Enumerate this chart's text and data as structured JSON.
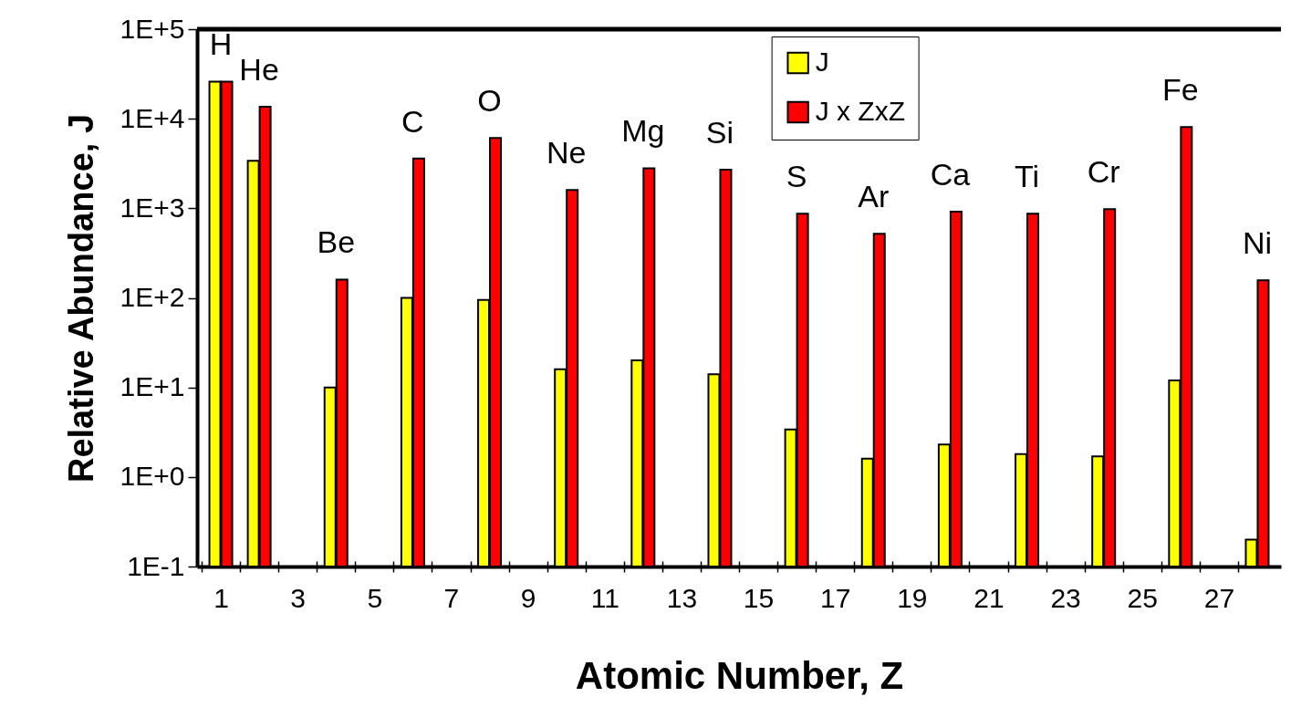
{
  "chart_data": {
    "type": "bar",
    "xlabel": "Atomic Number, Z",
    "ylabel": "Relative Abundance, J",
    "x": [
      1,
      2,
      4,
      6,
      8,
      10,
      12,
      14,
      16,
      18,
      20,
      22,
      24,
      26,
      28
    ],
    "series": [
      {
        "name": "J",
        "color": "#ffff00",
        "values": [
          26000,
          3400,
          10,
          100,
          95,
          16,
          20,
          14,
          3.4,
          1.6,
          2.3,
          1.8,
          1.7,
          12,
          0.2
        ]
      },
      {
        "name": "J x ZxZ",
        "color": "#ff0000",
        "values": [
          26000,
          13600,
          160,
          3600,
          6100,
          1600,
          2800,
          2700,
          870,
          520,
          920,
          870,
          980,
          8100,
          157
        ]
      }
    ],
    "log": "y",
    "ylim": [
      0.1,
      100000
    ],
    "yticks": [
      {
        "value": 0.1,
        "label": "1E-1"
      },
      {
        "value": 1,
        "label": "1E+0"
      },
      {
        "value": 10,
        "label": "1E+1"
      },
      {
        "value": 100,
        "label": "1E+2"
      },
      {
        "value": 1000,
        "label": "1E+3"
      },
      {
        "value": 10000,
        "label": "1E+4"
      },
      {
        "value": 100000,
        "label": "1E+5"
      }
    ],
    "xlim": [
      0.5,
      28.5
    ],
    "xticks": [
      1,
      3,
      5,
      7,
      9,
      11,
      13,
      15,
      17,
      19,
      21,
      23,
      25,
      27,
      {
        "value": 0.5,
        "label": null
      },
      {
        "value": 1.5,
        "label": null
      },
      {
        "value": 2.5,
        "label": null
      },
      {
        "value": 3.5,
        "label": null
      },
      {
        "value": 4.5,
        "label": null
      },
      {
        "value": 5.5,
        "label": null
      },
      {
        "value": 6.5,
        "label": null
      },
      {
        "value": 7.5,
        "label": null
      },
      {
        "value": 8.5,
        "label": null
      },
      {
        "value": 9.5,
        "label": null
      },
      {
        "value": 10.5,
        "label": null
      },
      {
        "value": 11.5,
        "label": null
      },
      {
        "value": 12.5,
        "label": null
      },
      {
        "value": 13.5,
        "label": null
      },
      {
        "value": 14.5,
        "label": null
      },
      {
        "value": 15.5,
        "label": null
      },
      {
        "value": 16.5,
        "label": null
      },
      {
        "value": 17.5,
        "label": null
      },
      {
        "value": 18.5,
        "label": null
      },
      {
        "value": 19.5,
        "label": null
      },
      {
        "value": 20.5,
        "label": null
      },
      {
        "value": 21.5,
        "label": null
      },
      {
        "value": 22.5,
        "label": null
      },
      {
        "value": 23.5,
        "label": null
      },
      {
        "value": 24.5,
        "label": null
      },
      {
        "value": 25.5,
        "label": null
      },
      {
        "value": 26.5,
        "label": null
      },
      {
        "value": 27.5,
        "label": null
      }
    ],
    "grid": false,
    "legend": "top",
    "annotations": [
      {
        "text": "H",
        "x": 1,
        "y": 26000
      },
      {
        "text": "He",
        "x": 2,
        "y": 13600
      },
      {
        "text": "Be",
        "x": 4,
        "y": 160
      },
      {
        "text": "C",
        "x": 6,
        "y": 3600
      },
      {
        "text": "O",
        "x": 8,
        "y": 6100
      },
      {
        "text": "Ne",
        "x": 10,
        "y": 1600
      },
      {
        "text": "Mg",
        "x": 12,
        "y": 2800
      },
      {
        "text": "Si",
        "x": 14,
        "y": 2700
      },
      {
        "text": "S",
        "x": 16,
        "y": 870
      },
      {
        "text": "Ar",
        "x": 18,
        "y": 520
      },
      {
        "text": "Ca",
        "x": 20,
        "y": 920
      },
      {
        "text": "Ti",
        "x": 22,
        "y": 870
      },
      {
        "text": "Cr",
        "x": 24,
        "y": 980
      },
      {
        "text": "Fe",
        "x": 26,
        "y": 8100
      },
      {
        "text": "Ni",
        "x": 28,
        "y": 157
      }
    ]
  }
}
